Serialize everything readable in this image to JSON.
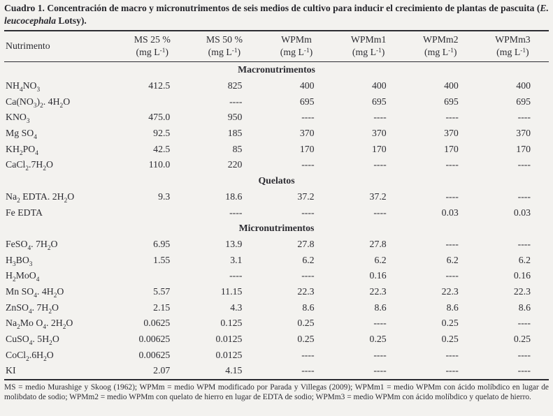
{
  "caption": {
    "label": "Cuadro 1.",
    "before_italic": " Concentración de macro y micronutrimentos de seis medios de cultivo para inducir el crecimiento de plantas de pascuita (",
    "italic": "E. leucocephala",
    "after_italic": " Lotsy)."
  },
  "table": {
    "row_header_label": "Nutrimento",
    "columns": [
      {
        "id": "ms25",
        "label": "MS 25 %",
        "unit": [
          [
            "t",
            "(mg L"
          ],
          [
            "p",
            "-1"
          ],
          [
            "t",
            ")"
          ]
        ]
      },
      {
        "id": "ms50",
        "label": "MS 50 %",
        "unit": [
          [
            "t",
            "(mg L"
          ],
          [
            "p",
            "-1"
          ],
          [
            "t",
            ")"
          ]
        ]
      },
      {
        "id": "wpmm",
        "label": "WPMm",
        "unit": [
          [
            "t",
            "(mg L"
          ],
          [
            "p",
            "-1"
          ],
          [
            "t",
            ")"
          ]
        ]
      },
      {
        "id": "wpmm1",
        "label": "WPMm1",
        "unit": [
          [
            "t",
            "(mg L"
          ],
          [
            "p",
            "-1"
          ],
          [
            "t",
            ")"
          ]
        ]
      },
      {
        "id": "wpmm2",
        "label": "WPMm2",
        "unit": [
          [
            "t",
            "(mg L"
          ],
          [
            "p",
            "-1"
          ],
          [
            "t",
            ")"
          ]
        ]
      },
      {
        "id": "wpmm3",
        "label": "WPMm3",
        "unit": [
          [
            "t",
            "(mg L"
          ],
          [
            "p",
            "-1"
          ],
          [
            "t",
            ")"
          ]
        ]
      }
    ],
    "sections": [
      {
        "label": "Macronutrimentos",
        "rows": [
          {
            "name": [
              [
                "t",
                "NH"
              ],
              [
                "b",
                "4"
              ],
              [
                "t",
                "NO"
              ],
              [
                "b",
                "3"
              ]
            ],
            "values": [
              "412.5",
              "825",
              "400",
              "400",
              "400",
              "400"
            ]
          },
          {
            "name": [
              [
                "t",
                "Ca(NO"
              ],
              [
                "b",
                "3"
              ],
              [
                "t",
                ")"
              ],
              [
                "b",
                "2"
              ],
              [
                "t",
                ". 4H"
              ],
              [
                "b",
                "2"
              ],
              [
                "t",
                "O"
              ]
            ],
            "values": [
              "",
              "----",
              "695",
              "695",
              "695",
              "695"
            ]
          },
          {
            "name": [
              [
                "t",
                "KNO"
              ],
              [
                "b",
                "3"
              ]
            ],
            "values": [
              "475.0",
              "950",
              "----",
              "----",
              "----",
              "----"
            ]
          },
          {
            "name": [
              [
                "t",
                "Mg SO"
              ],
              [
                "b",
                "4"
              ]
            ],
            "values": [
              "92.5",
              "185",
              "370",
              "370",
              "370",
              "370"
            ]
          },
          {
            "name": [
              [
                "t",
                "KH"
              ],
              [
                "b",
                "2"
              ],
              [
                "t",
                "PO"
              ],
              [
                "b",
                "4"
              ]
            ],
            "values": [
              "42.5",
              "85",
              "170",
              "170",
              "170",
              "170"
            ]
          },
          {
            "name": [
              [
                "t",
                "CaCl"
              ],
              [
                "b",
                "2"
              ],
              [
                "t",
                ".7H"
              ],
              [
                "b",
                "2"
              ],
              [
                "t",
                "O"
              ]
            ],
            "values": [
              "110.0",
              "220",
              "----",
              "----",
              "----",
              "----"
            ]
          }
        ]
      },
      {
        "label": "Quelatos",
        "rows": [
          {
            "name": [
              [
                "t",
                "Na"
              ],
              [
                "b",
                "2"
              ],
              [
                "t",
                " EDTA. 2H"
              ],
              [
                "b",
                "2"
              ],
              [
                "t",
                "O"
              ]
            ],
            "values": [
              "9.3",
              "18.6",
              "37.2",
              "37.2",
              "----",
              "----"
            ]
          },
          {
            "name": [
              [
                "t",
                "Fe EDTA"
              ]
            ],
            "values": [
              "",
              "----",
              "----",
              "----",
              "0.03",
              "0.03"
            ]
          }
        ]
      },
      {
        "label": "Micronutrimentos",
        "rows": [
          {
            "name": [
              [
                "t",
                "FeSO"
              ],
              [
                "b",
                "4"
              ],
              [
                "t",
                ". 7H"
              ],
              [
                "b",
                "2"
              ],
              [
                "t",
                "O"
              ]
            ],
            "values": [
              "6.95",
              "13.9",
              "27.8",
              "27.8",
              "----",
              "----"
            ]
          },
          {
            "name": [
              [
                "t",
                "H"
              ],
              [
                "b",
                "3"
              ],
              [
                "t",
                "BO"
              ],
              [
                "b",
                "3"
              ]
            ],
            "values": [
              "1.55",
              "3.1",
              "6.2",
              "6.2",
              "6.2",
              "6.2"
            ]
          },
          {
            "name": [
              [
                "t",
                "H"
              ],
              [
                "b",
                "2"
              ],
              [
                "t",
                "MoO"
              ],
              [
                "b",
                "4"
              ]
            ],
            "values": [
              "",
              "----",
              "----",
              "0.16",
              "----",
              "0.16"
            ]
          },
          {
            "name": [
              [
                "t",
                "Mn SO"
              ],
              [
                "b",
                "4"
              ],
              [
                "t",
                ". 4H"
              ],
              [
                "b",
                "2"
              ],
              [
                "t",
                "O"
              ]
            ],
            "values": [
              "5.57",
              "11.15",
              "22.3",
              "22.3",
              "22.3",
              "22.3"
            ]
          },
          {
            "name": [
              [
                "t",
                "ZnSO"
              ],
              [
                "b",
                "4"
              ],
              [
                "t",
                ". 7H"
              ],
              [
                "b",
                "2"
              ],
              [
                "t",
                "O"
              ]
            ],
            "values": [
              "2.15",
              "4.3",
              "8.6",
              "8.6",
              "8.6",
              "8.6"
            ]
          },
          {
            "name": [
              [
                "t",
                "Na"
              ],
              [
                "b",
                "2"
              ],
              [
                "t",
                "Mo O"
              ],
              [
                "b",
                "4"
              ],
              [
                "t",
                ". 2H"
              ],
              [
                "b",
                "2"
              ],
              [
                "t",
                "O"
              ]
            ],
            "values": [
              "0.0625",
              "0.125",
              "0.25",
              "----",
              "0.25",
              "----"
            ]
          },
          {
            "name": [
              [
                "t",
                "CuSO"
              ],
              [
                "b",
                "4"
              ],
              [
                "t",
                ". 5H"
              ],
              [
                "b",
                "2"
              ],
              [
                "t",
                "O"
              ]
            ],
            "values": [
              "0.00625",
              "0.0125",
              "0.25",
              "0.25",
              "0.25",
              "0.25"
            ]
          },
          {
            "name": [
              [
                "t",
                "CoCl"
              ],
              [
                "b",
                "2"
              ],
              [
                "t",
                ".6H"
              ],
              [
                "b",
                "2"
              ],
              [
                "t",
                "O"
              ]
            ],
            "values": [
              "0.00625",
              "0.0125",
              "----",
              "----",
              "----",
              "----"
            ]
          },
          {
            "name": [
              [
                "t",
                "KI"
              ]
            ],
            "values": [
              "2.07",
              "4.15",
              "----",
              "----",
              "----",
              "----"
            ]
          }
        ]
      }
    ]
  },
  "footnote": "MS = medio Murashige y Skoog (1962); WPMm = medio WPM modificado por Parada y Villegas (2009); WPMm1 = medio WPMm con ácido molíbdico en lugar de molibdato de sodio; WPMm2 = medio WPMm con quelato de hierro en lugar de EDTA de sodio; WPMm3 = medio WPMm con ácido molíbdico y quelato de hierro.",
  "colors": {
    "text": "#2c2c32",
    "background": "#f3f2ef",
    "rule": "#2c2c32"
  }
}
